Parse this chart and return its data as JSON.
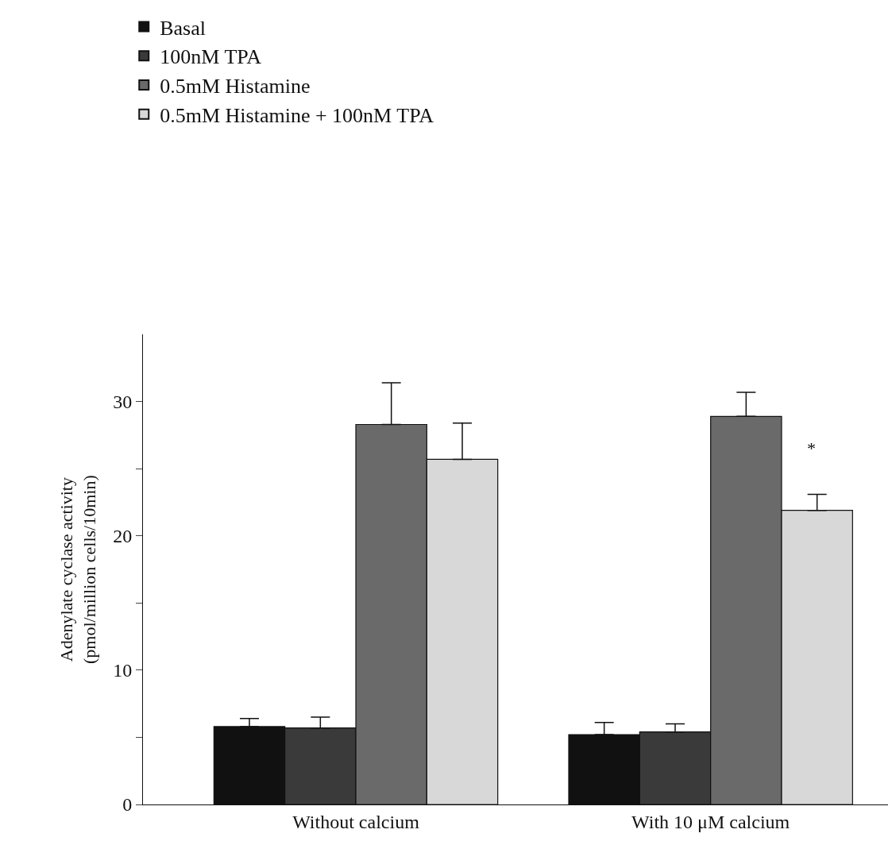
{
  "chart_data": {
    "type": "bar",
    "categories": [
      "Without calcium",
      "With 10 μM calcium"
    ],
    "ylabel": "Adenylate cyclase activity\n(pmol/million cells/10min)",
    "series": [
      {
        "name": "Basal",
        "color": "#111111",
        "values": [
          5.8,
          5.2
        ],
        "errors": [
          [
            5.8,
            6.4
          ],
          [
            5.2,
            6.1
          ]
        ]
      },
      {
        "name": "100nM TPA",
        "color": "#3a3a3a",
        "values": [
          5.7,
          5.4
        ],
        "errors": [
          [
            5.7,
            6.5
          ],
          [
            5.4,
            6.0
          ]
        ]
      },
      {
        "name": "0.5mM Histamine",
        "color": "#6a6a6a",
        "values": [
          28.3,
          28.9
        ],
        "errors": [
          [
            28.3,
            31.4
          ],
          [
            28.9,
            30.7
          ]
        ]
      },
      {
        "name": "0.5mM Histamine + 100nM TPA",
        "color": "#d8d8d8",
        "values": [
          25.7,
          21.9
        ],
        "errors": [
          [
            25.7,
            28.4
          ],
          [
            21.9,
            23.1
          ]
        ]
      }
    ],
    "annotations": [
      "*"
    ],
    "ylim": [
      0,
      35
    ],
    "yticks": [
      0,
      {
        "value": 5,
        "label": null
      },
      10,
      {
        "value": 15,
        "label": null
      },
      20,
      {
        "value": 25,
        "label": null
      },
      30
    ],
    "legend": "top left"
  }
}
